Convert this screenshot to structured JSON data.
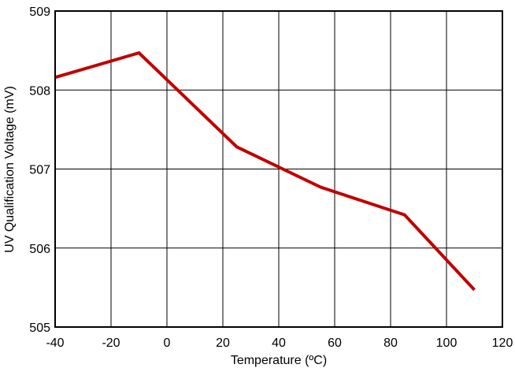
{
  "chart_data": {
    "type": "line",
    "xlabel": "Temperature (ºC)",
    "ylabel": "UV Qualification Voltage (mV)",
    "xlim": [
      -40,
      120
    ],
    "ylim": [
      505,
      509
    ],
    "xticks": [
      -40,
      -20,
      0,
      20,
      40,
      60,
      80,
      100,
      120
    ],
    "yticks": [
      505,
      506,
      507,
      508,
      509
    ],
    "grid": true,
    "series": [
      {
        "color": "#c00000",
        "x": [
          -40,
          -10,
          25,
          55,
          85,
          110
        ],
        "y": [
          508.16,
          508.47,
          507.28,
          506.77,
          506.42,
          505.47
        ]
      }
    ]
  }
}
